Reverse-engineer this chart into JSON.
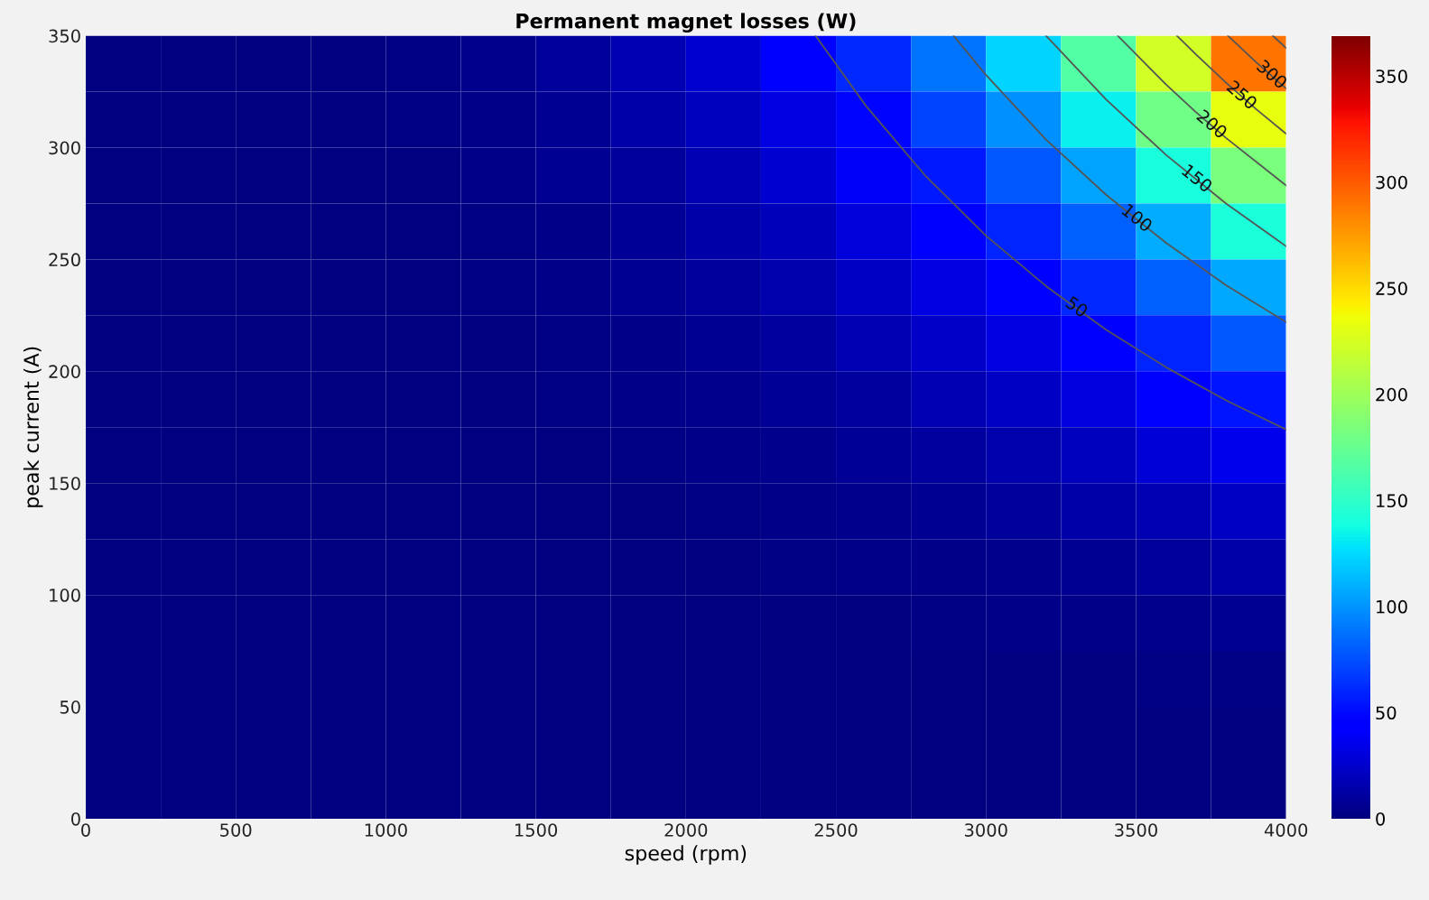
{
  "chart_data": {
    "type": "heatmap",
    "title": "Permanent magnet losses (W)",
    "xlabel": "speed (rpm)",
    "ylabel": "peak current (A)",
    "x": [
      125,
      375,
      625,
      875,
      1125,
      1375,
      1625,
      1875,
      2125,
      2375,
      2625,
      2875,
      3125,
      3375,
      3625,
      3875
    ],
    "y": [
      337.5,
      312.5,
      287.5,
      262.5,
      237.5,
      212.5,
      187.5,
      162.5,
      137.5,
      112.5,
      87.5,
      62.5,
      37.5,
      12.5
    ],
    "cells": [
      [
        0,
        0,
        0,
        1,
        2,
        5,
        9,
        16,
        26,
        41,
        61,
        88,
        123,
        167,
        223,
        291
      ],
      [
        0,
        0,
        0,
        1,
        2,
        4,
        7,
        13,
        21,
        33,
        49,
        71,
        99,
        134,
        179,
        233
      ],
      [
        0,
        0,
        0,
        0,
        1,
        3,
        6,
        10,
        17,
        26,
        39,
        56,
        78,
        106,
        141,
        184
      ],
      [
        0,
        0,
        0,
        0,
        1,
        2,
        4,
        8,
        13,
        20,
        30,
        43,
        60,
        82,
        109,
        142
      ],
      [
        0,
        0,
        0,
        0,
        1,
        2,
        3,
        6,
        10,
        15,
        22,
        32,
        45,
        61,
        82,
        107
      ],
      [
        0,
        0,
        0,
        0,
        1,
        1,
        2,
        4,
        7,
        11,
        16,
        24,
        33,
        45,
        60,
        78
      ],
      [
        0,
        0,
        0,
        0,
        0,
        1,
        2,
        3,
        5,
        8,
        11,
        16,
        23,
        31,
        42,
        54
      ],
      [
        0,
        0,
        0,
        0,
        0,
        1,
        1,
        2,
        3,
        5,
        8,
        11,
        15,
        21,
        28,
        36
      ],
      [
        0,
        0,
        0,
        0,
        0,
        0,
        1,
        1,
        2,
        3,
        5,
        7,
        9,
        13,
        17,
        22
      ],
      [
        0,
        0,
        0,
        0,
        0,
        0,
        0,
        1,
        1,
        2,
        3,
        4,
        5,
        7,
        10,
        13
      ],
      [
        0,
        0,
        0,
        0,
        0,
        0,
        0,
        0,
        1,
        1,
        1,
        2,
        3,
        4,
        5,
        6
      ],
      [
        0,
        0,
        0,
        0,
        0,
        0,
        0,
        0,
        0,
        0,
        1,
        1,
        1,
        1,
        2,
        2
      ],
      [
        0,
        0,
        0,
        0,
        0,
        0,
        0,
        0,
        0,
        0,
        0,
        0,
        0,
        0,
        0,
        1
      ],
      [
        0,
        0,
        0,
        0,
        0,
        0,
        0,
        0,
        0,
        0,
        0,
        0,
        0,
        0,
        0,
        0
      ]
    ],
    "clim": [
      0,
      369
    ],
    "cticks": [
      0,
      50,
      100,
      150,
      200,
      250,
      300,
      350
    ],
    "xlim": [
      0,
      4000
    ],
    "xticks": [
      0,
      500,
      1000,
      1500,
      2000,
      2500,
      3000,
      3500,
      4000
    ],
    "ylim": [
      0,
      350
    ],
    "yticks": [
      0,
      50,
      100,
      150,
      200,
      250,
      300,
      350
    ],
    "series": [
      {
        "type": "line",
        "name": "50",
        "color": "#555555",
        "x": [
          2432,
          2600,
          2800,
          3000,
          3200,
          3400,
          3600,
          3800,
          4000
        ],
        "values": [
          350,
          318.6,
          287.1,
          260.6,
          238.1,
          218.6,
          201.8,
          187.0,
          174.0
        ]
      },
      {
        "type": "line",
        "name": "100",
        "color": "#555555",
        "x": [
          2892,
          3000,
          3200,
          3400,
          3600,
          3800,
          4000
        ],
        "values": [
          350,
          332.4,
          303.6,
          278.9,
          257.4,
          238.5,
          222.0
        ]
      },
      {
        "type": "line",
        "name": "150",
        "color": "#555555",
        "x": [
          3200,
          3400,
          3600,
          3800,
          4000
        ],
        "values": [
          350,
          321.5,
          296.7,
          275.0,
          255.9
        ]
      },
      {
        "type": "line",
        "name": "200",
        "color": "#555555",
        "x": [
          3439,
          3600,
          3700,
          3800,
          4000
        ],
        "values": [
          350,
          328.2,
          315.8,
          304.3,
          283.1
        ]
      },
      {
        "type": "line",
        "name": "250",
        "color": "#555555",
        "x": [
          3636,
          3700,
          3800,
          3900,
          4000
        ],
        "values": [
          350,
          341.6,
          329.0,
          317.2,
          306.2
        ]
      },
      {
        "type": "line",
        "name": "300",
        "color": "#555555",
        "x": [
          3806,
          3900,
          4000
        ],
        "values": [
          350,
          338.2,
          326.4
        ]
      },
      {
        "type": "line",
        "color": "#555555",
        "x": [
          3956,
          4000
        ],
        "values": [
          350,
          344.5
        ]
      }
    ]
  }
}
